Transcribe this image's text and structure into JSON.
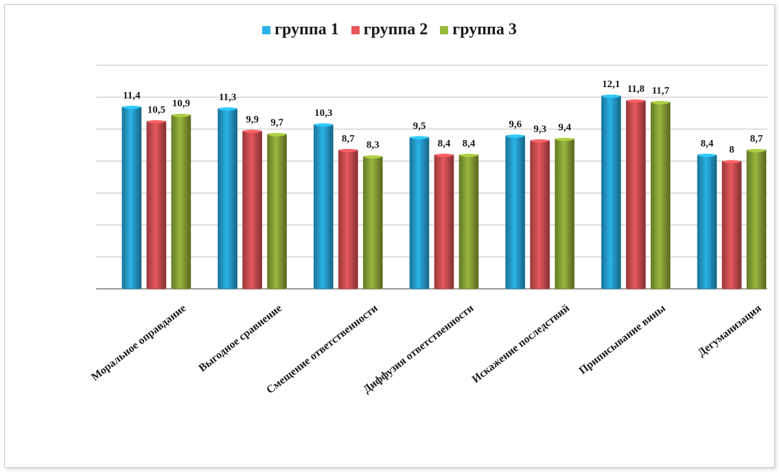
{
  "chart_data": {
    "type": "bar",
    "categories": [
      "Моральное оправдание",
      "Выгодное сравнение",
      "Смещение ответственности",
      "Диффузия ответственности",
      "Искажение последствий",
      "Приписывание вины",
      "Дегуманизация"
    ],
    "series": [
      {
        "name": "группа 1",
        "values": [
          11.4,
          11.3,
          10.3,
          9.5,
          9.6,
          12.1,
          8.4
        ],
        "labels": [
          "11,4",
          "11,3",
          "10,3",
          "9,5",
          "9,6",
          "12,1",
          "8,4"
        ],
        "color": "#2ab2e8"
      },
      {
        "name": "группа 2",
        "values": [
          10.5,
          9.9,
          8.7,
          8.4,
          9.3,
          11.8,
          8
        ],
        "labels": [
          "10,5",
          "9,9",
          "8,7",
          "8,4",
          "9,3",
          "11,8",
          "8"
        ],
        "color": "#e8575a"
      },
      {
        "name": "группа 3",
        "values": [
          10.9,
          9.7,
          8.3,
          8.4,
          9.4,
          11.7,
          8.7
        ],
        "labels": [
          "10,9",
          "9,7",
          "8,3",
          "8,4",
          "9,4",
          "11,7",
          "8,7"
        ],
        "color": "#9ab83c"
      }
    ],
    "ylim": [
      0,
      14
    ],
    "grid": true,
    "legend_position": "top-center",
    "xlabel": "",
    "ylabel": ""
  }
}
